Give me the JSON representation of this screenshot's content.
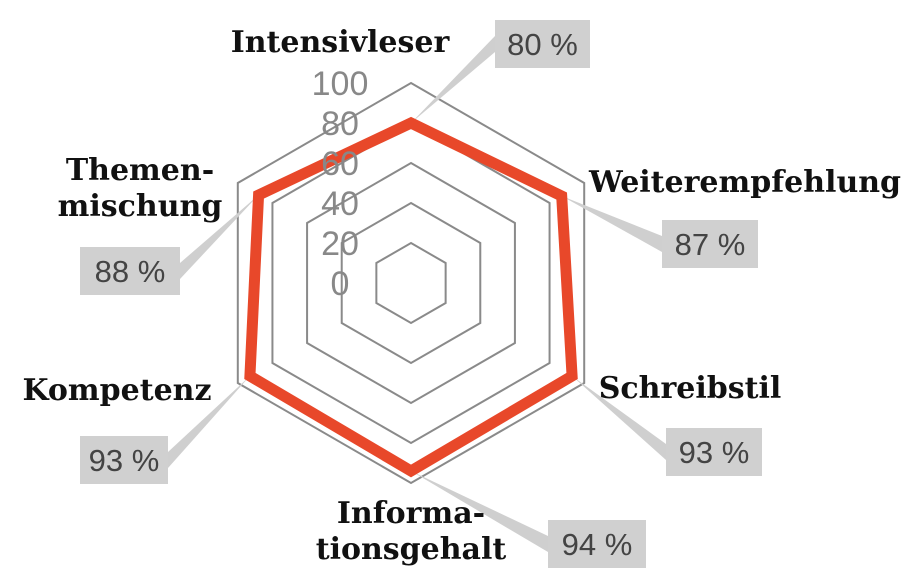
{
  "chart_data": {
    "type": "radar",
    "categories": [
      "Intensivleser",
      "Weiterempfehlung",
      "Schreibstil",
      "Informa-\ntionsgehalt",
      "Kompetenz",
      "Themen-\nmischung"
    ],
    "values": [
      80,
      87,
      93,
      94,
      93,
      88
    ],
    "value_labels": [
      "80 %",
      "87 %",
      "93 %",
      "94 %",
      "93 %",
      "88 %"
    ],
    "color": "#e8482a",
    "ylim": [
      0,
      100
    ],
    "yticks": [
      0,
      20,
      40,
      60,
      80,
      100
    ],
    "grid": true
  }
}
